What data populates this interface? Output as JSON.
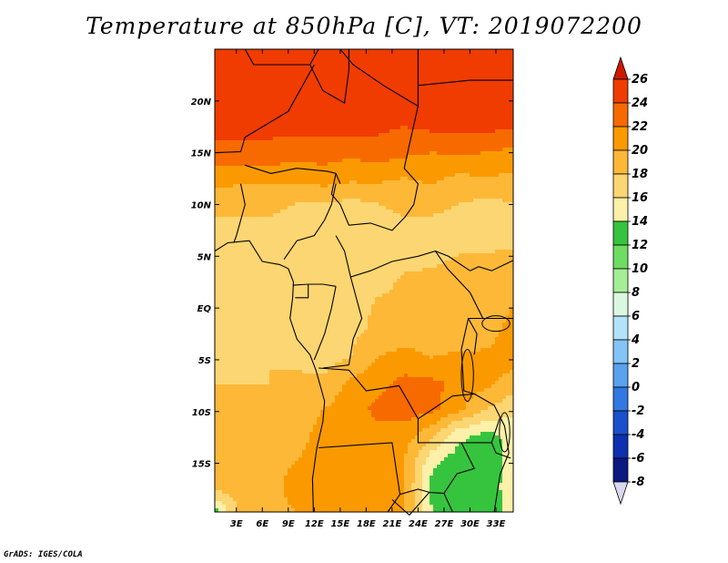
{
  "title": "Temperature at 850hPa [C], VT: 2019072200",
  "credit": "GrADS: IGES/COLA",
  "chart_data": {
    "type": "heatmap",
    "title": "Temperature at 850hPa [C], VT: 2019072200",
    "units": "C",
    "valid_time": "2019072200",
    "lat_labels": [
      "20N",
      "15N",
      "10N",
      "5N",
      "EQ",
      "5S",
      "10S",
      "15S"
    ],
    "lat_values": [
      20,
      15,
      10,
      5,
      0,
      -5,
      -10,
      -15
    ],
    "lon_labels": [
      "3E",
      "6E",
      "9E",
      "12E",
      "15E",
      "18E",
      "21E",
      "24E",
      "27E",
      "30E",
      "33E"
    ],
    "lon_values": [
      3,
      6,
      9,
      12,
      15,
      18,
      21,
      24,
      27,
      30,
      33
    ],
    "lon_range": [
      0.5,
      35
    ],
    "lat_range": [
      -19.7,
      25
    ],
    "colorbar": {
      "labels": [
        "26",
        "24",
        "22",
        "20",
        "18",
        "16",
        "14",
        "12",
        "10",
        "8",
        "6",
        "4",
        "2",
        "0",
        "-2",
        "-4",
        "-6",
        "-8"
      ],
      "values": [
        26,
        24,
        22,
        20,
        18,
        16,
        14,
        12,
        10,
        8,
        6,
        4,
        2,
        0,
        -2,
        -4,
        -6,
        -8
      ],
      "colors": [
        "#e22000",
        "#f03c00",
        "#f76a00",
        "#fa9a00",
        "#fdb838",
        "#fcd672",
        "#fdf0a8",
        "#36c43e",
        "#6fdc62",
        "#a6ee96",
        "#daf8e0",
        "#b4e2fb",
        "#84c4f6",
        "#58a2ee",
        "#3278e2",
        "#1a50cc",
        "#0c30b0",
        "#0a1a80"
      ],
      "top_arrow_color": "#cc1a00",
      "bottom_arrow_color": "#d8d8f0"
    },
    "field": [
      [
        25.5,
        25.5,
        25.5,
        25.0,
        25.0,
        25.2,
        25.5,
        25.0,
        24.5,
        24.5,
        24.0,
        24.5
      ],
      [
        25.0,
        25.0,
        25.0,
        25.0,
        25.0,
        25.2,
        25.0,
        24.8,
        24.5,
        24.5,
        24.5,
        24.5
      ],
      [
        24.5,
        25.0,
        25.0,
        25.0,
        25.0,
        25.0,
        25.0,
        24.8,
        24.5,
        24.5,
        24.5,
        24.5
      ],
      [
        24.5,
        24.5,
        24.5,
        24.5,
        24.5,
        24.8,
        24.5,
        24.0,
        24.5,
        24.5,
        24.5,
        24.5
      ],
      [
        23.5,
        23.5,
        23.5,
        23.0,
        23.0,
        22.5,
        23.0,
        22.5,
        22.0,
        22.5,
        22.0,
        21.5
      ],
      [
        21.0,
        20.5,
        20.5,
        20.5,
        21.0,
        20.5,
        20.5,
        20.0,
        20.5,
        19.5,
        20.0,
        19.5
      ],
      [
        18.5,
        18.5,
        18.5,
        18.0,
        18.0,
        17.5,
        18.0,
        18.5,
        18.5,
        18.0,
        17.5,
        18.0
      ],
      [
        17.5,
        17.5,
        17.5,
        17.0,
        16.5,
        16.5,
        17.0,
        17.5,
        17.5,
        17.0,
        17.0,
        16.5
      ],
      [
        16.5,
        16.5,
        16.5,
        16.5,
        16.5,
        16.5,
        16.5,
        17.0,
        17.5,
        18.0,
        18.0,
        18.5
      ],
      [
        16.5,
        16.5,
        16.5,
        16.5,
        16.0,
        16.5,
        17.0,
        18.5,
        18.5,
        19.0,
        18.5,
        19.5
      ],
      [
        17.0,
        17.0,
        17.0,
        16.5,
        16.0,
        16.5,
        18.5,
        18.5,
        18.5,
        18.5,
        18.5,
        20.0
      ],
      [
        17.5,
        17.5,
        17.5,
        17.0,
        16.5,
        17.5,
        18.5,
        18.5,
        18.5,
        18.5,
        19.0,
        21.0
      ],
      [
        17.5,
        17.5,
        18.0,
        17.5,
        17.0,
        18.0,
        20.0,
        21.0,
        20.0,
        20.5,
        20.5,
        21.0
      ],
      [
        18.0,
        18.0,
        18.0,
        18.5,
        18.5,
        20.5,
        21.5,
        22.5,
        22.5,
        21.5,
        20.5,
        19.0
      ],
      [
        18.5,
        18.5,
        18.5,
        19.0,
        20.0,
        21.0,
        22.5,
        23.0,
        22.5,
        20.5,
        18.0,
        16.5
      ],
      [
        19.0,
        19.0,
        19.0,
        19.5,
        20.5,
        21.0,
        21.5,
        21.0,
        18.5,
        14.5,
        13.5,
        14.5
      ],
      [
        19.0,
        19.0,
        19.5,
        20.0,
        20.5,
        21.5,
        21.5,
        20.0,
        14.5,
        13.0,
        13.0,
        14.5
      ],
      [
        19.0,
        19.0,
        19.5,
        20.5,
        20.5,
        21.0,
        21.0,
        20.0,
        13.5,
        13.0,
        13.5,
        14.5
      ],
      [
        13.0,
        19.0,
        19.5,
        20.0,
        20.0,
        21.0,
        21.0,
        20.0,
        14.0,
        12.5,
        13.0,
        14.5
      ]
    ]
  }
}
